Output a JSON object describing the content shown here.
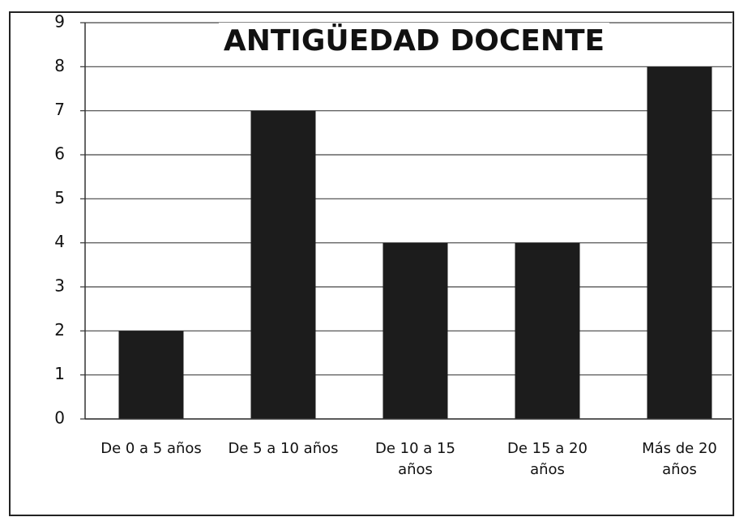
{
  "chart_data": {
    "type": "bar",
    "title": "ANTIGÜEDAD DOCENTE",
    "categories": [
      "De 0 a 5 años",
      "De 5 a 10 años",
      "De 10 a 15\naños",
      "De 15 a 20\naños",
      "Más de 20\naños"
    ],
    "values": [
      2,
      7,
      4,
      4,
      8
    ],
    "color": "#1c1c1c",
    "ylim": [
      0,
      9
    ],
    "yticks": [
      0,
      1,
      2,
      3,
      4,
      5,
      6,
      7,
      8,
      9
    ],
    "grid": true
  }
}
